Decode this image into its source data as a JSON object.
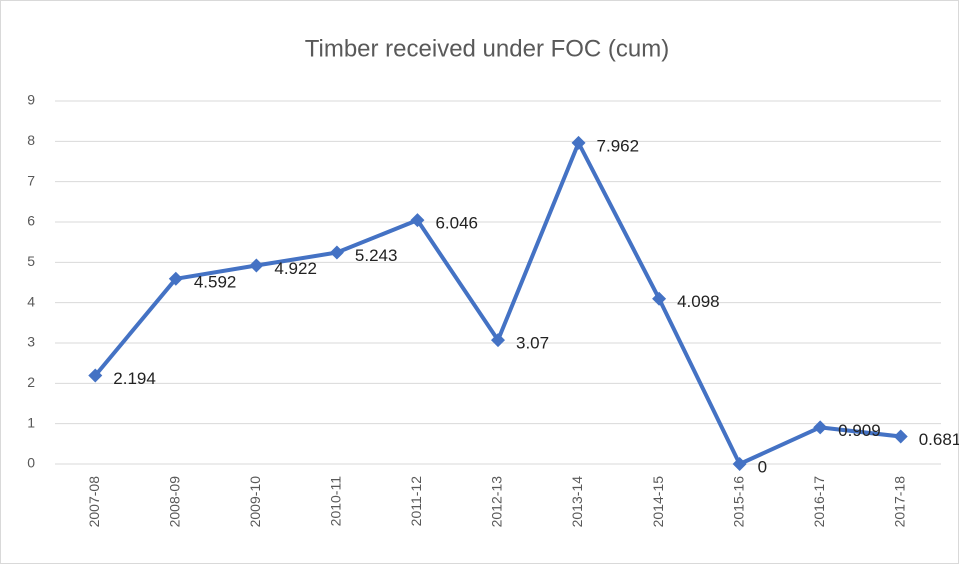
{
  "chart_data": {
    "type": "line",
    "title": "Timber received under FOC (cum)",
    "categories": [
      "2007-08",
      "2008-09",
      "2009-10",
      "2010-11",
      "2011-12",
      "2012-13",
      "2013-14",
      "2014-15",
      "2015-16",
      "2016-17",
      "2017-18"
    ],
    "series": [
      {
        "name": "Timber received under FOC (cum)",
        "color": "#4472c4",
        "values": [
          2.194,
          4.592,
          4.922,
          5.243,
          6.046,
          3.07,
          7.962,
          4.098,
          0,
          0.909,
          0.681
        ]
      }
    ],
    "ylim": [
      0,
      9
    ],
    "yticks": [
      0,
      1,
      2,
      3,
      4,
      5,
      6,
      7,
      8,
      9
    ],
    "grid": true
  }
}
